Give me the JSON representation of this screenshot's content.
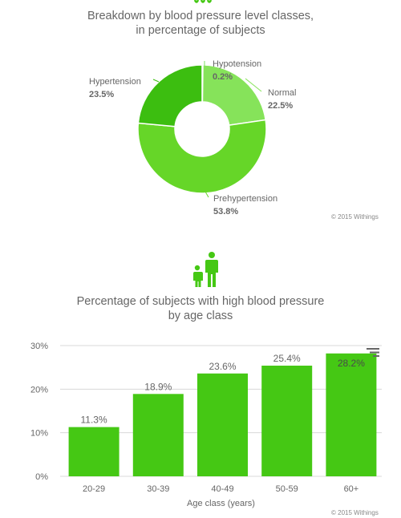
{
  "donut": {
    "title_line1": "Breakdown by blood pressure level classes,",
    "title_line2": "in percentage of subjects",
    "credit": "© 2015 Withings"
  },
  "bar": {
    "title_line1": "Percentage of subjects with high blood pressure",
    "title_line2": "by age class",
    "credit": "© 2015 Withings"
  },
  "icons": {
    "top_fragment": "withings-logo-icon",
    "people": "adult-and-child-icon",
    "menu": "hamburger-menu-icon"
  },
  "colors": {
    "hypotension": "#7be060",
    "normal": "#86e35a",
    "prehypertension": "#66d628",
    "hypertension": "#3cbe10",
    "bars": "#45c814",
    "icon": "#45c814"
  },
  "chart_data": [
    {
      "type": "pie",
      "title": "Breakdown by blood pressure level classes, in percentage of subjects",
      "donut": true,
      "labels": [
        "Hypotension",
        "Normal",
        "Prehypertension",
        "Hypertension"
      ],
      "values": [
        0.2,
        22.5,
        53.8,
        23.5
      ],
      "value_labels": [
        "0.2%",
        "22.5%",
        "53.8%",
        "23.5%"
      ]
    },
    {
      "type": "bar",
      "title": "Percentage of subjects with high blood pressure by age class",
      "categories": [
        "20-29",
        "30-39",
        "40-49",
        "50-59",
        "60+"
      ],
      "values": [
        11.3,
        18.9,
        23.6,
        25.4,
        28.2
      ],
      "value_labels": [
        "11.3%",
        "18.9%",
        "23.6%",
        "25.4%",
        "28.2%"
      ],
      "xlabel": "Age class (years)",
      "ylabel": "",
      "yticks": [
        "0%",
        "10%",
        "20%",
        "30%"
      ],
      "ylim": [
        0,
        30
      ],
      "grid": true
    }
  ]
}
